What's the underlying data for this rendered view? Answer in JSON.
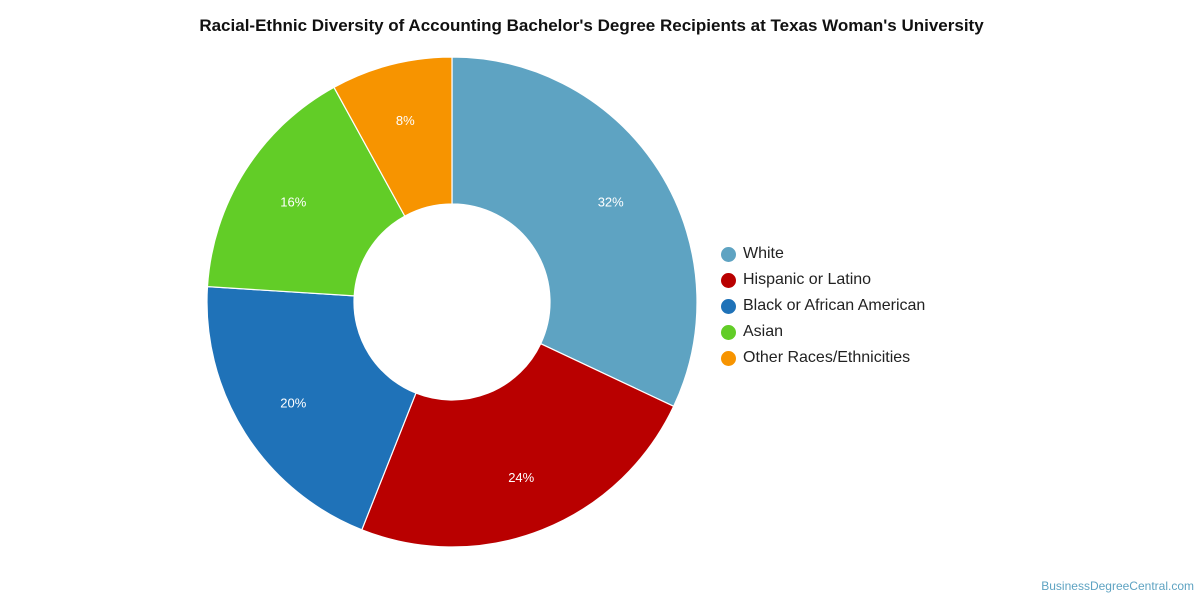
{
  "title": "Racial-Ethnic Diversity of Accounting Bachelor's Degree Recipients at Texas Woman's University",
  "watermark": "BusinessDegreeCentral.com",
  "chart_data": {
    "type": "pie",
    "variant": "donut",
    "title": "Racial-Ethnic Diversity of Accounting Bachelor's Degree Recipients at Texas Woman's University",
    "legend_position": "right",
    "slices": [
      {
        "name": "White",
        "value": 32,
        "label": "32%",
        "color": "#5ea3c2"
      },
      {
        "name": "Hispanic or Latino",
        "value": 24,
        "label": "24%",
        "color": "#b90000"
      },
      {
        "name": "Black or African American",
        "value": 20,
        "label": "20%",
        "color": "#1f72b8"
      },
      {
        "name": "Asian",
        "value": 16,
        "label": "16%",
        "color": "#62cd27"
      },
      {
        "name": "Other Races/Ethnicities",
        "value": 8,
        "label": "8%",
        "color": "#f79400"
      }
    ]
  }
}
